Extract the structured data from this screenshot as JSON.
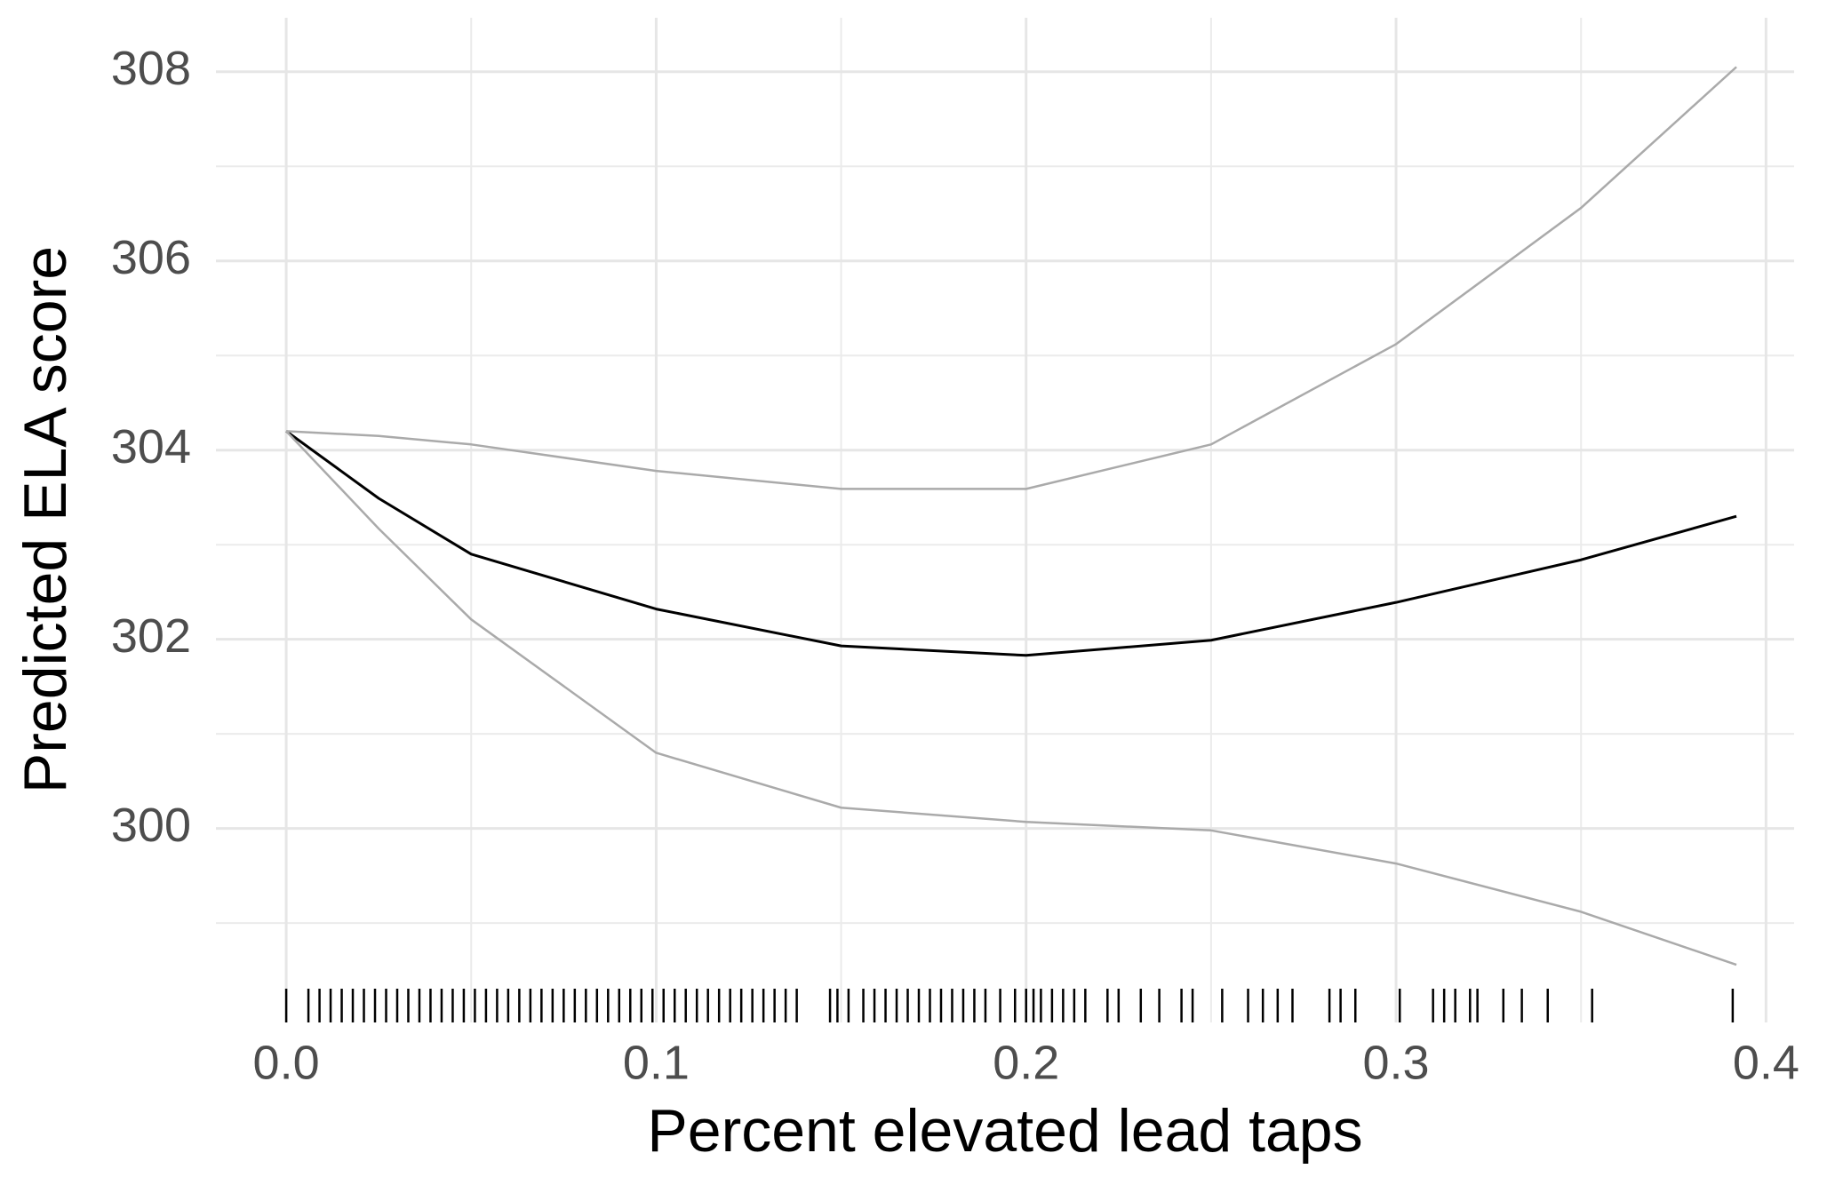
{
  "chart_data": {
    "type": "line",
    "xlabel": "Percent elevated lead taps",
    "ylabel": "Predicted ELA score",
    "x": [
      0,
      0.025,
      0.05,
      0.1,
      0.15,
      0.2,
      0.25,
      0.3,
      0.35,
      0.392
    ],
    "series": [
      {
        "color": "#000000",
        "values": [
          304.2,
          303.49,
          302.9,
          302.32,
          301.93,
          301.83,
          301.99,
          302.39,
          302.84,
          303.3
        ]
      },
      {
        "color": "#aaaaaa",
        "values": [
          304.2,
          304.15,
          304.06,
          303.78,
          303.59,
          303.59,
          304.06,
          305.12,
          306.56,
          308.05
        ]
      },
      {
        "color": "#aaaaaa",
        "values": [
          304.2,
          303.17,
          302.21,
          300.8,
          300.22,
          300.07,
          299.98,
          299.63,
          299.12,
          298.56
        ]
      }
    ],
    "rug": [
      0,
      0.006,
      0.009,
      0.012,
      0.015,
      0.018,
      0.021,
      0.024,
      0.027,
      0.03,
      0.033,
      0.036,
      0.039,
      0.042,
      0.045,
      0.048,
      0.051,
      0.054,
      0.057,
      0.06,
      0.063,
      0.066,
      0.069,
      0.072,
      0.075,
      0.078,
      0.081,
      0.084,
      0.087,
      0.09,
      0.093,
      0.096,
      0.099,
      0.102,
      0.105,
      0.108,
      0.111,
      0.114,
      0.117,
      0.12,
      0.123,
      0.126,
      0.129,
      0.132,
      0.135,
      0.138,
      0.147,
      0.149,
      0.152,
      0.156,
      0.159,
      0.162,
      0.165,
      0.168,
      0.171,
      0.174,
      0.177,
      0.18,
      0.183,
      0.186,
      0.189,
      0.193,
      0.197,
      0.2,
      0.202,
      0.204,
      0.207,
      0.21,
      0.213,
      0.216,
      0.222,
      0.225,
      0.231,
      0.236,
      0.242,
      0.245,
      0.253,
      0.26,
      0.264,
      0.268,
      0.272,
      0.282,
      0.285,
      0.289,
      0.301,
      0.31,
      0.313,
      0.316,
      0.32,
      0.322,
      0.329,
      0.334,
      0.341,
      0.353,
      0.391
    ],
    "rug_color": "#000000",
    "xlim": [
      -0.019,
      0.4076
    ],
    "ylim": [
      297.95,
      308.57
    ],
    "xticks": [
      {
        "value": 0,
        "label": "0.0"
      },
      0.1,
      0.2,
      0.3,
      0.4
    ],
    "yticks": [
      300,
      302,
      304,
      306,
      308
    ],
    "xminor": [
      0.05,
      0.15,
      0.25,
      0.35
    ],
    "yminor": [
      299,
      301,
      303,
      305,
      307
    ],
    "grid": true
  }
}
